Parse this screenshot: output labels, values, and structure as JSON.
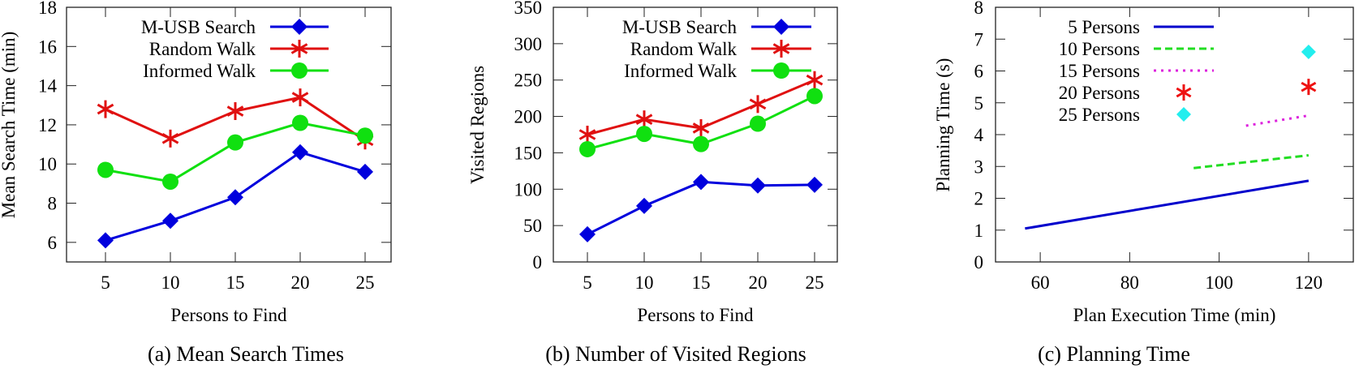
{
  "chart_data": [
    {
      "id": "a",
      "type": "line",
      "caption": "(a) Mean Search Times",
      "title": "",
      "xlabel": "Persons to Find",
      "ylabel": "Mean Search Time (min)",
      "x": [
        5,
        10,
        15,
        20,
        25
      ],
      "xticks": [
        5,
        10,
        15,
        20,
        25
      ],
      "yticks": [
        6,
        8,
        10,
        12,
        14,
        16,
        18
      ],
      "xlim": [
        2.0,
        27.0
      ],
      "ylim": [
        5,
        18
      ],
      "grid": false,
      "legend_position": "top-center",
      "series": [
        {
          "name": "M-USB Search",
          "color": "#0000dd",
          "marker": "diamond",
          "values": [
            6.1,
            7.1,
            8.3,
            10.6,
            9.6
          ]
        },
        {
          "name": "Random Walk",
          "color": "#e01010",
          "marker": "asterisk",
          "values": [
            12.8,
            11.3,
            12.7,
            13.4,
            11.2
          ]
        },
        {
          "name": "Informed Walk",
          "color": "#10e010",
          "marker": "circle",
          "values": [
            9.7,
            9.1,
            11.1,
            12.1,
            11.45
          ]
        }
      ]
    },
    {
      "id": "b",
      "type": "line",
      "caption": "(b) Number of Visited Regions",
      "title": "",
      "xlabel": "Persons to Find",
      "ylabel": "Visited Regions",
      "x": [
        5,
        10,
        15,
        20,
        25
      ],
      "xticks": [
        5,
        10,
        15,
        20,
        25
      ],
      "yticks": [
        0,
        50,
        100,
        150,
        200,
        250,
        300,
        350
      ],
      "xlim": [
        2.0,
        27.0
      ],
      "ylim": [
        0,
        350
      ],
      "grid": false,
      "legend_position": "top-center",
      "series": [
        {
          "name": "M-USB Search",
          "color": "#0000dd",
          "marker": "diamond",
          "values": [
            38,
            77,
            110,
            105,
            106
          ]
        },
        {
          "name": "Random Walk",
          "color": "#e01010",
          "marker": "asterisk",
          "values": [
            175,
            196,
            184,
            217,
            250
          ]
        },
        {
          "name": "Informed Walk",
          "color": "#10e010",
          "marker": "circle",
          "values": [
            155,
            176,
            162,
            190,
            228
          ]
        }
      ]
    },
    {
      "id": "c",
      "type": "line",
      "caption": "(c) Planning Time",
      "title": "",
      "xlabel": "Plan Execution Time (min)",
      "ylabel": "Planning Time (s)",
      "xticks": [
        60,
        80,
        100,
        120
      ],
      "yticks": [
        0,
        1,
        2,
        3,
        4,
        5,
        6,
        7,
        8
      ],
      "xlim": [
        50,
        130
      ],
      "ylim": [
        0,
        8
      ],
      "grid": false,
      "legend_position": "top-center",
      "series": [
        {
          "name": "5 Persons",
          "color": "#0000cc",
          "style": "solid",
          "points": [
            [
              56.6,
              1.05
            ],
            [
              120,
              2.55
            ]
          ]
        },
        {
          "name": "10 Persons",
          "color": "#22dd22",
          "style": "dashed",
          "points": [
            [
              94.3,
              2.95
            ],
            [
              120,
              3.35
            ]
          ]
        },
        {
          "name": "15 Persons",
          "color": "#dd22dd",
          "style": "dotted",
          "points": [
            [
              106,
              4.28
            ],
            [
              120,
              4.6
            ]
          ]
        },
        {
          "name": "20 Persons",
          "color": "#ee1111",
          "style": "marker-asterisk",
          "points": [
            [
              120,
              5.5
            ]
          ]
        },
        {
          "name": "25 Persons",
          "color": "#22eeee",
          "style": "marker-diamond",
          "points": [
            [
              120,
              6.6
            ]
          ]
        }
      ]
    }
  ]
}
